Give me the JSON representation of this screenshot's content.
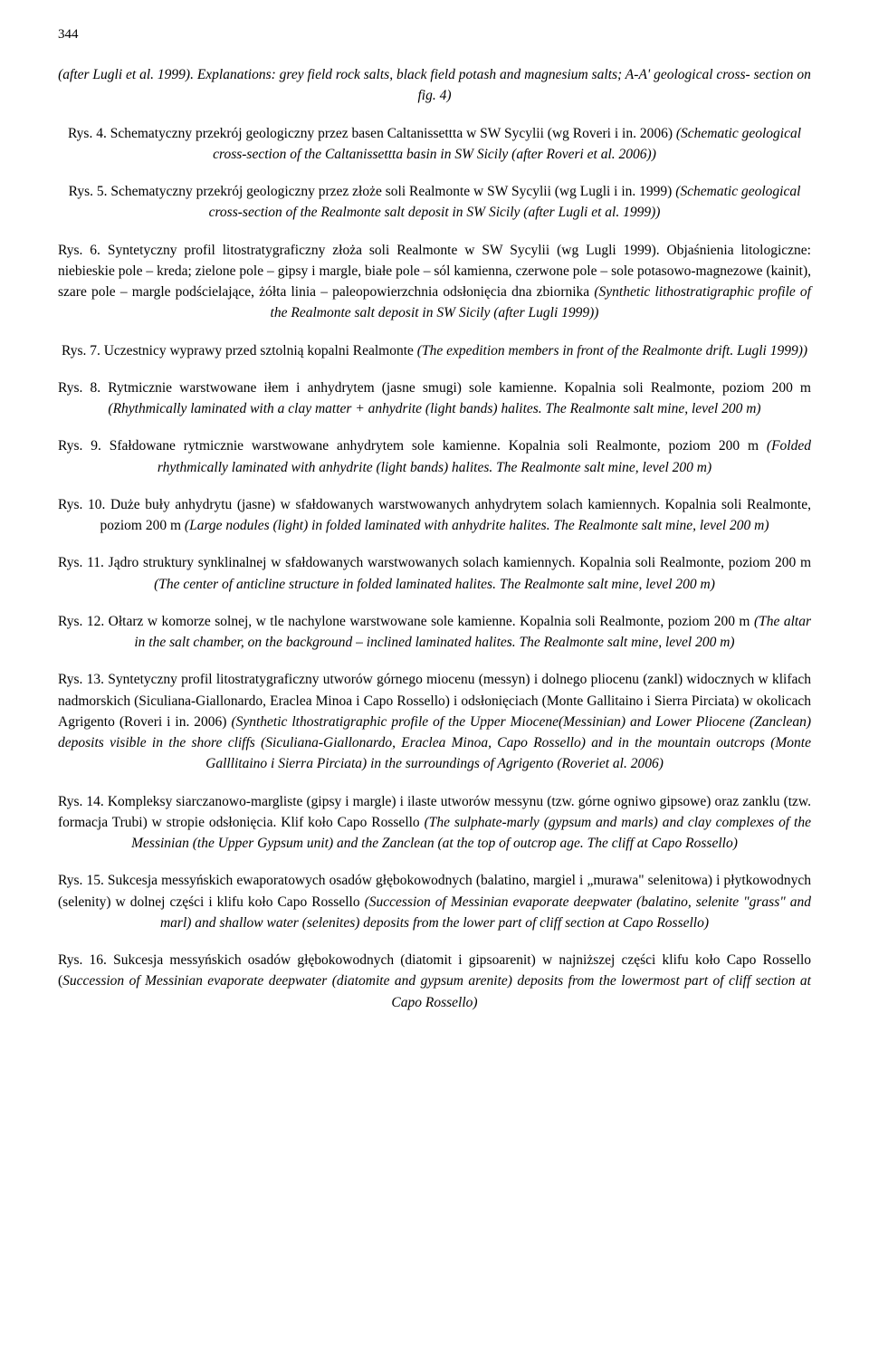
{
  "pageNumber": "344",
  "captions": [
    {
      "prefix": "(after Lugli et al. 1999). Explanations: grey field rock salts, black field potash and magnesium salts; A-A' geological cross- section on fig. 4)",
      "italic": true,
      "type": "simple"
    },
    {
      "parts": [
        {
          "text": "Rys. 4. Schematyczny przekrój geologiczny przez basen Caltanissettta w SW Sycylii (wg Roveri i in. 2006) ",
          "italic": false
        },
        {
          "text": "(Schematic geological cross-section of the Caltanissettta basin in SW Sicily (after Roveri et al. 2006))",
          "italic": true
        }
      ],
      "type": "mixed"
    },
    {
      "parts": [
        {
          "text": "Rys. 5. Schematyczny przekrój geologiczny przez złoże soli Realmonte w SW Sycylii (wg Lugli i in. 1999) ",
          "italic": false
        },
        {
          "text": "(Schematic geological cross-section of the Realmonte salt deposit in SW Sicily (after Lugli et al. 1999))",
          "italic": true
        }
      ],
      "type": "mixed"
    },
    {
      "parts": [
        {
          "text": "Rys. 6. Syntetyczny profil litostratygraficzny złoża soli Realmonte w SW Sycylii (wg Lugli 1999). Objaśnienia litologiczne: niebieskie pole – kreda; zielone pole – gipsy i margle, białe pole – sól kamienna, czerwone pole – sole potasowo-magnezowe (kainit), szare pole – margle podścielające, żółta linia – paleopowierzchnia odsłonięcia dna zbiornika ",
          "italic": false
        },
        {
          "text": "(Synthetic lithostratigraphic profile of the Realmonte salt deposit in SW Sicily (after Lugli 1999))",
          "italic": true
        }
      ],
      "type": "mixed-justified"
    },
    {
      "parts": [
        {
          "text": "Rys. 7. Uczestnicy wyprawy przed sztolnią kopalni Realmonte ",
          "italic": false
        },
        {
          "text": "(The expedition members in front of the Realmonte drift. Lugli 1999))",
          "italic": true
        }
      ],
      "type": "mixed"
    },
    {
      "parts": [
        {
          "text": "Rys. 8. Rytmicznie warstwowane iłem i anhydrytem (jasne smugi) sole kamienne. Kopalnia soli Realmonte, poziom 200 m ",
          "italic": false
        },
        {
          "text": "(Rhythmically laminated with a clay matter + anhydrite (light bands) halites. The Realmonte salt mine, level 200 m)",
          "italic": true
        }
      ],
      "type": "mixed-justified"
    },
    {
      "parts": [
        {
          "text": "Rys. 9. Sfałdowane rytmicznie warstwowane anhydrytem sole kamienne. Kopalnia soli Realmonte, poziom 200 m ",
          "italic": false
        },
        {
          "text": "(Folded rhythmically laminated with anhydrite (light bands) halites. The Realmonte salt mine, level 200 m)",
          "italic": true
        }
      ],
      "type": "mixed-justified"
    },
    {
      "parts": [
        {
          "text": "Rys. 10. Duże buły anhydrytu (jasne) w sfałdowanych warstwowanych anhydrytem solach kamiennych. Kopalnia soli Realmonte, poziom 200 m ",
          "italic": false
        },
        {
          "text": "(Large nodules (light) in folded laminated with anhydrite halites. The Realmonte salt mine, level 200 m)",
          "italic": true
        }
      ],
      "type": "mixed-justified"
    },
    {
      "parts": [
        {
          "text": "Rys. 11. Jądro struktury synklinalnej w sfałdowanych warstwowanych solach kamiennych. Kopalnia soli Realmonte, poziom 200 m ",
          "italic": false
        },
        {
          "text": "(The center of anticline structure in folded laminated halites. The Realmonte salt mine, level 200 m)",
          "italic": true
        }
      ],
      "type": "mixed-justified"
    },
    {
      "parts": [
        {
          "text": "Rys. 12. Ołtarz w komorze solnej, w tle nachylone warstwowane sole kamienne. Kopalnia soli Realmonte, poziom 200 m ",
          "italic": false
        },
        {
          "text": "(The altar in the salt chamber, on the background – inclined laminated halites. The Realmonte salt mine, level 200 m)",
          "italic": true
        }
      ],
      "type": "mixed-justified"
    },
    {
      "parts": [
        {
          "text": "Rys. 13. Syntetyczny profil litostratygraficzny utworów górnego miocenu (messyn) i dolnego pliocenu (zankl) widocznych w klifach nadmorskich (Siculiana-Giallonardo, Eraclea Minoa i Capo Rossello) i odsłonięciach (Monte Gallitaino i Sierra Pirciata) w okolicach Agrigento (Roveri i in. 2006) ",
          "italic": false
        },
        {
          "text": "(Synthetic lthostratigraphic profile of the Upper Miocene(Messinian) and Lower Pliocene (Zanclean) deposits visible in the shore cliffs (Siculiana-Giallonardo, Eraclea Minoa, Capo Rossello) and in the mountain outcrops (Monte Galllitaino i Sierra Pirciata) in the surroundings of Agrigento (Roveriet al. 2006)",
          "italic": true
        }
      ],
      "type": "mixed-justified"
    },
    {
      "parts": [
        {
          "text": "Rys. 14. Kompleksy siarczanowo-margliste (gipsy i margle) i ilaste utworów messynu (tzw. górne ogniwo gipsowe) oraz zanklu (tzw. formacja Trubi) w stropie odsłonięcia. Klif koło Capo Rossello ",
          "italic": false
        },
        {
          "text": "(The sulphate-marly (gypsum and marls) and clay complexes of the Messinian (the Upper Gypsum unit) and the Zanclean (at the top of outcrop age. The cliff at Capo Rossello)",
          "italic": true
        }
      ],
      "type": "mixed-justified"
    },
    {
      "parts": [
        {
          "text": "Rys. 15. Sukcesja messyńskich ewaporatowych osadów głębokowodnych (balatino, margiel i „murawa\" selenitowa) i płytkowodnych (selenity) w dolnej części i klifu koło Capo Rossello ",
          "italic": false
        },
        {
          "text": "(Succession of Messinian evaporate deepwater (balatino, selenite \"grass\" and marl) and shallow water (selenites) deposits from the lower part of cliff section at Capo Rossello)",
          "italic": true
        }
      ],
      "type": "mixed-justified"
    },
    {
      "parts": [
        {
          "text": "Rys. 16. Sukcesja messyńskich osadów głębokowodnych (diatomit i gipsoarenit) w najniższej części klifu koło Capo Rossello (",
          "italic": false
        },
        {
          "text": "Succession of Messinian evaporate deepwater (diatomite and gypsum arenite) deposits from the lowermost part of cliff section at Capo Rossello)",
          "italic": true
        }
      ],
      "type": "mixed-justified"
    }
  ]
}
